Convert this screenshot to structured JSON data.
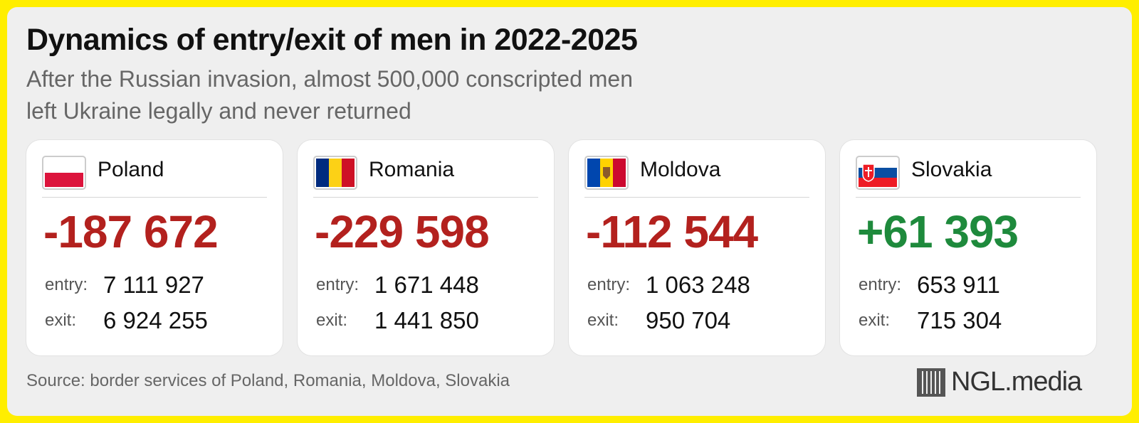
{
  "header": {
    "title": "Dynamics of entry/exit of men in 2022-2025",
    "subtitle_lines": [
      "After the Russian invasion, almost 500,000 conscripted men",
      "left Ukraine legally and never returned"
    ]
  },
  "cards": [
    {
      "country": "Poland",
      "net": "-187 672",
      "entry_label": "entry:",
      "entry": "7 111 927",
      "exit_label": "exit:",
      "exit": "6 924 255"
    },
    {
      "country": "Romania",
      "net": "-229 598",
      "entry_label": "entry:",
      "entry": "1 671 448",
      "exit_label": "exit:",
      "exit": "1 441 850"
    },
    {
      "country": "Moldova",
      "net": "-112 544",
      "entry_label": "entry:",
      "entry": "1 063 248",
      "exit_label": "exit:",
      "exit": "950 704"
    },
    {
      "country": "Slovakia",
      "net": "+61 393",
      "entry_label": "entry:",
      "entry": "653 911",
      "exit_label": "exit:",
      "exit": "715 304"
    }
  ],
  "footer": {
    "source": "Source: border services of Poland, Romania, Moldova, Slovakia",
    "logo": "NGL.media"
  }
}
